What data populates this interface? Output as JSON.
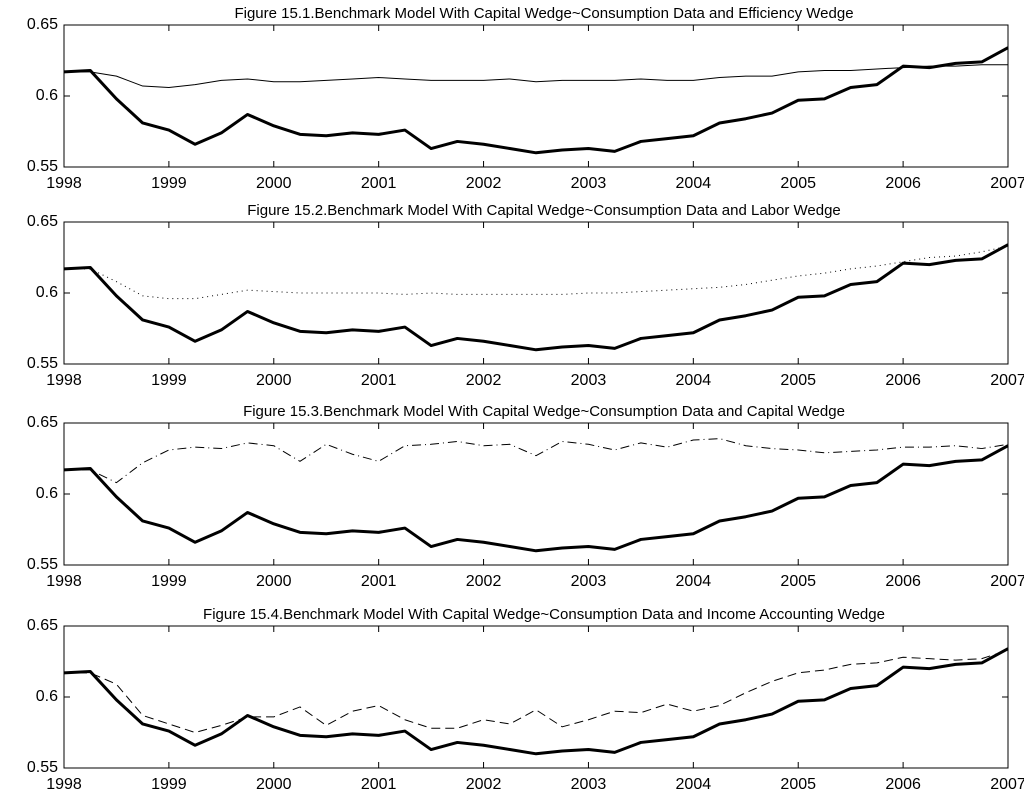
{
  "chart_data": [
    {
      "type": "line",
      "title": "Figure 15.1.Benchmark Model With Capital Wedge~Consumption Data and Efficiency Wedge",
      "x": [
        1998,
        1998.25,
        1998.5,
        1998.75,
        1999,
        1999.25,
        1999.5,
        1999.75,
        2000,
        2000.25,
        2000.5,
        2000.75,
        2001,
        2001.25,
        2001.5,
        2001.75,
        2002,
        2002.25,
        2002.5,
        2002.75,
        2003,
        2003.25,
        2003.5,
        2003.75,
        2004,
        2004.25,
        2004.5,
        2004.75,
        2005,
        2005.25,
        2005.5,
        2005.75,
        2006,
        2006.25,
        2006.5,
        2006.75,
        2007
      ],
      "xlim": [
        1998,
        2007
      ],
      "xticks": [
        1998,
        1999,
        2000,
        2001,
        2002,
        2003,
        2004,
        2005,
        2006,
        2007
      ],
      "ylim": [
        0.55,
        0.65
      ],
      "yticks": [
        0.55,
        0.6,
        0.65
      ],
      "series": [
        {
          "color": "#000000",
          "width": 3,
          "style": "solid",
          "values": [
            0.617,
            0.618,
            0.598,
            0.581,
            0.576,
            0.566,
            0.574,
            0.587,
            0.579,
            0.573,
            0.572,
            0.574,
            0.573,
            0.576,
            0.563,
            0.568,
            0.566,
            0.563,
            0.56,
            0.562,
            0.563,
            0.561,
            0.568,
            0.57,
            0.572,
            0.581,
            0.584,
            0.588,
            0.597,
            0.598,
            0.606,
            0.608,
            0.621,
            0.62,
            0.623,
            0.624,
            0.634
          ]
        },
        {
          "color": "#000000",
          "width": 1,
          "style": "solid",
          "values": [
            0.617,
            0.617,
            0.614,
            0.607,
            0.606,
            0.608,
            0.611,
            0.612,
            0.61,
            0.61,
            0.611,
            0.612,
            0.613,
            0.612,
            0.611,
            0.611,
            0.611,
            0.612,
            0.61,
            0.611,
            0.611,
            0.611,
            0.612,
            0.611,
            0.611,
            0.613,
            0.614,
            0.614,
            0.617,
            0.618,
            0.618,
            0.619,
            0.62,
            0.621,
            0.621,
            0.622,
            0.622
          ]
        }
      ]
    },
    {
      "type": "line",
      "title": "Figure 15.2.Benchmark Model With Capital Wedge~Consumption Data and Labor Wedge",
      "x": [
        1998,
        1998.25,
        1998.5,
        1998.75,
        1999,
        1999.25,
        1999.5,
        1999.75,
        2000,
        2000.25,
        2000.5,
        2000.75,
        2001,
        2001.25,
        2001.5,
        2001.75,
        2002,
        2002.25,
        2002.5,
        2002.75,
        2003,
        2003.25,
        2003.5,
        2003.75,
        2004,
        2004.25,
        2004.5,
        2004.75,
        2005,
        2005.25,
        2005.5,
        2005.75,
        2006,
        2006.25,
        2006.5,
        2006.75,
        2007
      ],
      "xlim": [
        1998,
        2007
      ],
      "xticks": [
        1998,
        1999,
        2000,
        2001,
        2002,
        2003,
        2004,
        2005,
        2006,
        2007
      ],
      "ylim": [
        0.55,
        0.65
      ],
      "yticks": [
        0.55,
        0.6,
        0.65
      ],
      "series": [
        {
          "color": "#000000",
          "width": 3,
          "style": "solid",
          "values": [
            0.617,
            0.618,
            0.598,
            0.581,
            0.576,
            0.566,
            0.574,
            0.587,
            0.579,
            0.573,
            0.572,
            0.574,
            0.573,
            0.576,
            0.563,
            0.568,
            0.566,
            0.563,
            0.56,
            0.562,
            0.563,
            0.561,
            0.568,
            0.57,
            0.572,
            0.581,
            0.584,
            0.588,
            0.597,
            0.598,
            0.606,
            0.608,
            0.621,
            0.62,
            0.623,
            0.624,
            0.634
          ]
        },
        {
          "color": "#000000",
          "width": 1,
          "style": "dotted",
          "values": [
            0.617,
            0.617,
            0.608,
            0.598,
            0.596,
            0.596,
            0.599,
            0.602,
            0.601,
            0.6,
            0.6,
            0.6,
            0.6,
            0.599,
            0.6,
            0.599,
            0.599,
            0.599,
            0.599,
            0.599,
            0.6,
            0.6,
            0.601,
            0.602,
            0.603,
            0.604,
            0.606,
            0.609,
            0.612,
            0.614,
            0.617,
            0.619,
            0.622,
            0.625,
            0.626,
            0.629,
            0.633
          ]
        }
      ]
    },
    {
      "type": "line",
      "title": "Figure 15.3.Benchmark Model With Capital Wedge~Consumption Data and Capital Wedge",
      "x": [
        1998,
        1998.25,
        1998.5,
        1998.75,
        1999,
        1999.25,
        1999.5,
        1999.75,
        2000,
        2000.25,
        2000.5,
        2000.75,
        2001,
        2001.25,
        2001.5,
        2001.75,
        2002,
        2002.25,
        2002.5,
        2002.75,
        2003,
        2003.25,
        2003.5,
        2003.75,
        2004,
        2004.25,
        2004.5,
        2004.75,
        2005,
        2005.25,
        2005.5,
        2005.75,
        2006,
        2006.25,
        2006.5,
        2006.75,
        2007
      ],
      "xlim": [
        1998,
        2007
      ],
      "xticks": [
        1998,
        1999,
        2000,
        2001,
        2002,
        2003,
        2004,
        2005,
        2006,
        2007
      ],
      "ylim": [
        0.55,
        0.65
      ],
      "yticks": [
        0.55,
        0.6,
        0.65
      ],
      "series": [
        {
          "color": "#000000",
          "width": 3,
          "style": "solid",
          "values": [
            0.617,
            0.618,
            0.598,
            0.581,
            0.576,
            0.566,
            0.574,
            0.587,
            0.579,
            0.573,
            0.572,
            0.574,
            0.573,
            0.576,
            0.563,
            0.568,
            0.566,
            0.563,
            0.56,
            0.562,
            0.563,
            0.561,
            0.568,
            0.57,
            0.572,
            0.581,
            0.584,
            0.588,
            0.597,
            0.598,
            0.606,
            0.608,
            0.621,
            0.62,
            0.623,
            0.624,
            0.634
          ]
        },
        {
          "color": "#000000",
          "width": 1,
          "style": "dashdot",
          "values": [
            0.617,
            0.617,
            0.608,
            0.622,
            0.631,
            0.633,
            0.632,
            0.636,
            0.634,
            0.623,
            0.635,
            0.628,
            0.623,
            0.634,
            0.635,
            0.637,
            0.634,
            0.635,
            0.627,
            0.637,
            0.635,
            0.631,
            0.636,
            0.633,
            0.638,
            0.639,
            0.634,
            0.632,
            0.631,
            0.629,
            0.63,
            0.631,
            0.633,
            0.633,
            0.634,
            0.632,
            0.635
          ]
        }
      ]
    },
    {
      "type": "line",
      "title": "Figure 15.4.Benchmark Model With Capital Wedge~Consumption Data and Income Accounting Wedge",
      "x": [
        1998,
        1998.25,
        1998.5,
        1998.75,
        1999,
        1999.25,
        1999.5,
        1999.75,
        2000,
        2000.25,
        2000.5,
        2000.75,
        2001,
        2001.25,
        2001.5,
        2001.75,
        2002,
        2002.25,
        2002.5,
        2002.75,
        2003,
        2003.25,
        2003.5,
        2003.75,
        2004,
        2004.25,
        2004.5,
        2004.75,
        2005,
        2005.25,
        2005.5,
        2005.75,
        2006,
        2006.25,
        2006.5,
        2006.75,
        2007
      ],
      "xlim": [
        1998,
        2007
      ],
      "xticks": [
        1998,
        1999,
        2000,
        2001,
        2002,
        2003,
        2004,
        2005,
        2006,
        2007
      ],
      "ylim": [
        0.55,
        0.65
      ],
      "yticks": [
        0.55,
        0.6,
        0.65
      ],
      "series": [
        {
          "color": "#000000",
          "width": 3,
          "style": "solid",
          "values": [
            0.617,
            0.618,
            0.598,
            0.581,
            0.576,
            0.566,
            0.574,
            0.587,
            0.579,
            0.573,
            0.572,
            0.574,
            0.573,
            0.576,
            0.563,
            0.568,
            0.566,
            0.563,
            0.56,
            0.562,
            0.563,
            0.561,
            0.568,
            0.57,
            0.572,
            0.581,
            0.584,
            0.588,
            0.597,
            0.598,
            0.606,
            0.608,
            0.621,
            0.62,
            0.623,
            0.624,
            0.634
          ]
        },
        {
          "color": "#000000",
          "width": 1,
          "style": "dashed",
          "values": [
            0.617,
            0.617,
            0.609,
            0.587,
            0.581,
            0.575,
            0.58,
            0.586,
            0.586,
            0.593,
            0.58,
            0.59,
            0.594,
            0.584,
            0.578,
            0.578,
            0.584,
            0.581,
            0.591,
            0.579,
            0.584,
            0.59,
            0.589,
            0.595,
            0.59,
            0.594,
            0.603,
            0.611,
            0.617,
            0.619,
            0.623,
            0.624,
            0.628,
            0.627,
            0.626,
            0.627,
            0.633
          ]
        }
      ]
    }
  ]
}
